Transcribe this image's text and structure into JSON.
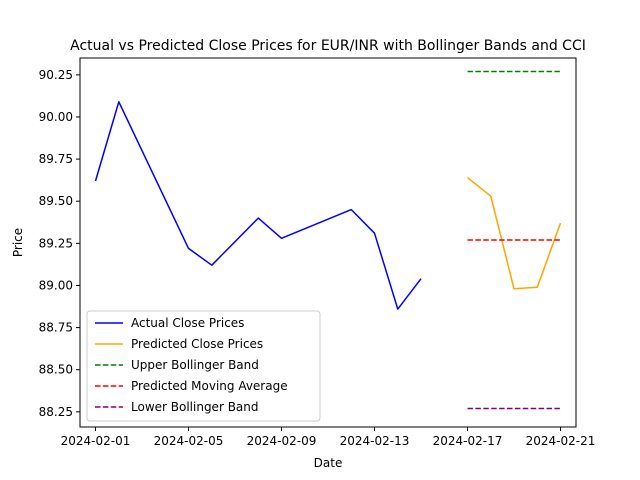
{
  "chart_data": {
    "type": "line",
    "title": "Actual vs Predicted Close Prices for EUR/INR with Bollinger Bands and CCI",
    "xlabel": "Date",
    "ylabel": "Price",
    "xlim": [
      "2024-01-31T08:00",
      "2024-02-21T16:00"
    ],
    "ylim": [
      88.16,
      90.35
    ],
    "x_ticks": [
      "2024-02-01",
      "2024-02-05",
      "2024-02-09",
      "2024-02-13",
      "2024-02-17",
      "2024-02-21"
    ],
    "y_ticks": [
      "88.25",
      "88.50",
      "88.75",
      "89.00",
      "89.25",
      "89.50",
      "89.75",
      "90.00",
      "90.25"
    ],
    "grid": false,
    "legend_position": "lower-left",
    "series": [
      {
        "name": "Actual Close Prices",
        "color": "#0000ff",
        "style": "solid",
        "points": [
          [
            "2024-02-01",
            89.62
          ],
          [
            "2024-02-02",
            90.09
          ],
          [
            "2024-02-05",
            89.22
          ],
          [
            "2024-02-06",
            89.12
          ],
          [
            "2024-02-08",
            89.4
          ],
          [
            "2024-02-09",
            89.28
          ],
          [
            "2024-02-12",
            89.45
          ],
          [
            "2024-02-13",
            89.31
          ],
          [
            "2024-02-14",
            88.86
          ],
          [
            "2024-02-15",
            89.04
          ]
        ]
      },
      {
        "name": "Predicted Close Prices",
        "color": "#ffa500",
        "style": "solid",
        "points": [
          [
            "2024-02-17",
            89.64
          ],
          [
            "2024-02-18",
            89.53
          ],
          [
            "2024-02-19",
            88.98
          ],
          [
            "2024-02-20",
            88.99
          ],
          [
            "2024-02-21",
            89.37
          ]
        ]
      },
      {
        "name": "Upper Bollinger Band",
        "color": "#008000",
        "style": "dashed",
        "points": [
          [
            "2024-02-17",
            90.27
          ],
          [
            "2024-02-21",
            90.27
          ]
        ]
      },
      {
        "name": "Predicted Moving Average",
        "color": "#ff0000",
        "style": "dashed",
        "points": [
          [
            "2024-02-17",
            89.27
          ],
          [
            "2024-02-21",
            89.27
          ]
        ]
      },
      {
        "name": "Lower Bollinger Band",
        "color": "#800080",
        "style": "dashed",
        "points": [
          [
            "2024-02-17",
            88.27
          ],
          [
            "2024-02-21",
            88.27
          ]
        ]
      }
    ]
  }
}
